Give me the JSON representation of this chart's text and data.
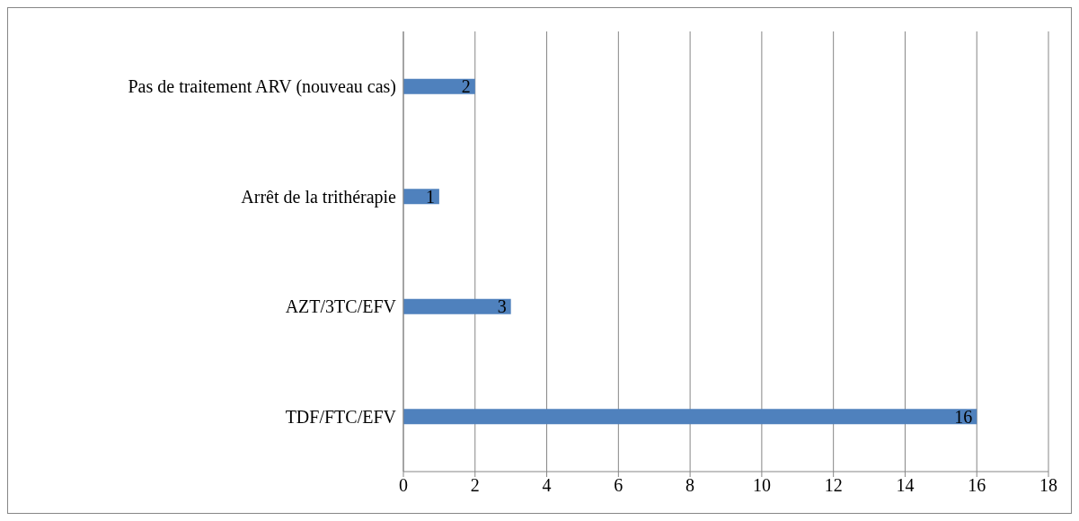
{
  "chart_data": {
    "type": "bar",
    "orientation": "horizontal",
    "categories": [
      "Pas de traitement ARV (nouveau cas)",
      "Arrêt de la trithérapie",
      "AZT/3TC/EFV",
      "TDF/FTC/EFV"
    ],
    "values": [
      2,
      1,
      3,
      16
    ],
    "color": "#4f81bd",
    "xlim": [
      0,
      18
    ],
    "xticks": [
      0,
      2,
      4,
      6,
      8,
      10,
      12,
      14,
      16,
      18
    ],
    "grid": "x",
    "data_labels": true
  }
}
